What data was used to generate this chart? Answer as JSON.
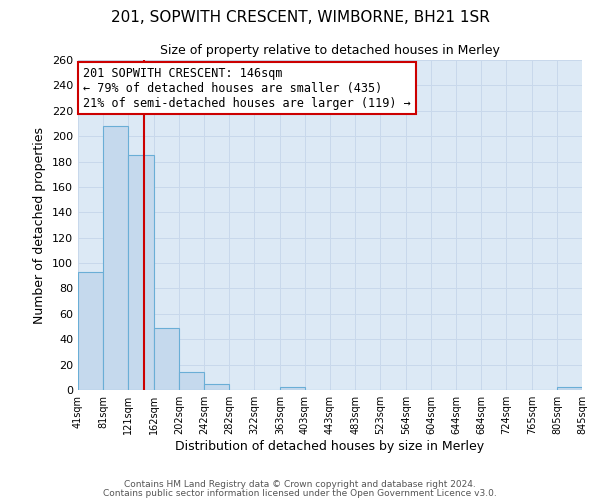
{
  "title": "201, SOPWITH CRESCENT, WIMBORNE, BH21 1SR",
  "subtitle": "Size of property relative to detached houses in Merley",
  "xlabel": "Distribution of detached houses by size in Merley",
  "ylabel": "Number of detached properties",
  "bin_edges": [
    41,
    81,
    121,
    162,
    202,
    242,
    282,
    322,
    363,
    403,
    443,
    483,
    523,
    564,
    604,
    644,
    684,
    724,
    765,
    805,
    845
  ],
  "bin_labels": [
    "41sqm",
    "81sqm",
    "121sqm",
    "162sqm",
    "202sqm",
    "242sqm",
    "282sqm",
    "322sqm",
    "363sqm",
    "403sqm",
    "443sqm",
    "483sqm",
    "523sqm",
    "564sqm",
    "604sqm",
    "644sqm",
    "684sqm",
    "724sqm",
    "765sqm",
    "805sqm",
    "845sqm"
  ],
  "bar_heights": [
    93,
    208,
    185,
    49,
    14,
    5,
    0,
    0,
    2,
    0,
    0,
    0,
    0,
    0,
    0,
    0,
    0,
    0,
    0,
    2
  ],
  "bar_color": "#c5d9ed",
  "bar_edge_color": "#6aaed6",
  "property_line_x": 146,
  "property_line_color": "#cc0000",
  "ylim": [
    0,
    260
  ],
  "yticks": [
    0,
    20,
    40,
    60,
    80,
    100,
    120,
    140,
    160,
    180,
    200,
    220,
    240,
    260
  ],
  "annotation_title": "201 SOPWITH CRESCENT: 146sqm",
  "annotation_line1": "← 79% of detached houses are smaller (435)",
  "annotation_line2": "21% of semi-detached houses are larger (119) →",
  "annotation_box_color": "#ffffff",
  "annotation_box_edge": "#cc0000",
  "grid_color": "#c8d8eb",
  "bg_color": "#dce9f5",
  "plot_bg_color": "#dce9f5",
  "footer1": "Contains HM Land Registry data © Crown copyright and database right 2024.",
  "footer2": "Contains public sector information licensed under the Open Government Licence v3.0."
}
